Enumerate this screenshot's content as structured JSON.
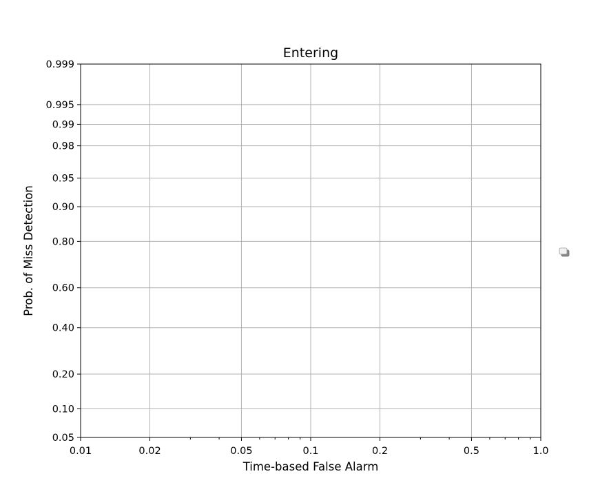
{
  "chart_data": {
    "type": "line",
    "title": "Entering",
    "xlabel": "Time-based False Alarm",
    "ylabel": "Prob. of Miss Detection",
    "x_scale": "log",
    "y_scale": "probit",
    "xlim": [
      0.01,
      1.0
    ],
    "ylim": [
      0.05,
      0.999
    ],
    "x_ticks": [
      0.01,
      0.02,
      0.05,
      0.1,
      0.2,
      0.5,
      1.0
    ],
    "x_tick_labels": [
      "0.01",
      "0.02",
      "0.05",
      "0.1",
      "0.2",
      "0.5",
      "1.0"
    ],
    "y_ticks": [
      0.05,
      0.1,
      0.2,
      0.4,
      0.6,
      0.8,
      0.9,
      0.95,
      0.98,
      0.99,
      0.995,
      0.999
    ],
    "y_tick_labels": [
      "0.05",
      "0.10",
      "0.20",
      "0.40",
      "0.60",
      "0.80",
      "0.90",
      "0.95",
      "0.98",
      "0.99",
      "0.995",
      "0.999"
    ],
    "grid": true,
    "legend": "right-outside, empty",
    "series": []
  },
  "colors": {
    "grid": "#b0b0b0",
    "axis": "#000000",
    "background": "#ffffff"
  }
}
